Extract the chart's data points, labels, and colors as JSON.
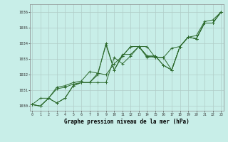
{
  "title": "Graphe pression niveau de la mer (hPa)",
  "bg_color": "#c8eee8",
  "grid_color": "#b0ccc8",
  "line_color": "#2d6a2d",
  "xlim": [
    -0.3,
    23.3
  ],
  "ylim": [
    1029.7,
    1036.5
  ],
  "yticks": [
    1030,
    1031,
    1032,
    1033,
    1034,
    1035,
    1036
  ],
  "xticks": [
    0,
    1,
    2,
    3,
    4,
    5,
    6,
    7,
    8,
    9,
    10,
    11,
    12,
    13,
    14,
    15,
    16,
    17,
    18,
    19,
    20,
    21,
    22,
    23
  ],
  "series": [
    [
      1030.1,
      1030.0,
      1030.5,
      1030.2,
      1030.5,
      1031.3,
      1031.5,
      1031.5,
      1031.5,
      1031.5,
      1033.1,
      1032.7,
      1033.2,
      1033.8,
      1033.8,
      1033.1,
      1033.1,
      1032.3,
      1033.8,
      1034.4,
      1034.3,
      1035.3,
      1035.3,
      1036.0
    ],
    [
      1030.1,
      1030.0,
      1030.5,
      1030.2,
      1030.5,
      1031.3,
      1031.5,
      1031.5,
      1032.0,
      1034.0,
      1032.3,
      1033.2,
      1033.8,
      1033.8,
      1033.1,
      1033.2,
      1032.6,
      1032.3,
      1033.8,
      1034.4,
      1034.3,
      1035.3,
      1035.3,
      1036.0
    ],
    [
      1030.1,
      1030.0,
      1030.5,
      1031.1,
      1031.2,
      1031.4,
      1031.5,
      1031.5,
      1032.1,
      1032.0,
      1032.7,
      1033.2,
      1033.8,
      1033.8,
      1033.2,
      1033.2,
      1032.6,
      1032.3,
      1033.8,
      1034.4,
      1034.3,
      1035.3,
      1035.3,
      1036.0
    ],
    [
      1030.1,
      1030.5,
      1030.5,
      1031.2,
      1031.3,
      1031.5,
      1031.6,
      1032.2,
      1032.1,
      1033.9,
      1032.3,
      1033.3,
      1033.3,
      1033.8,
      1033.2,
      1033.1,
      1033.1,
      1033.7,
      1033.8,
      1034.4,
      1034.5,
      1035.4,
      1035.5,
      1036.0
    ]
  ]
}
